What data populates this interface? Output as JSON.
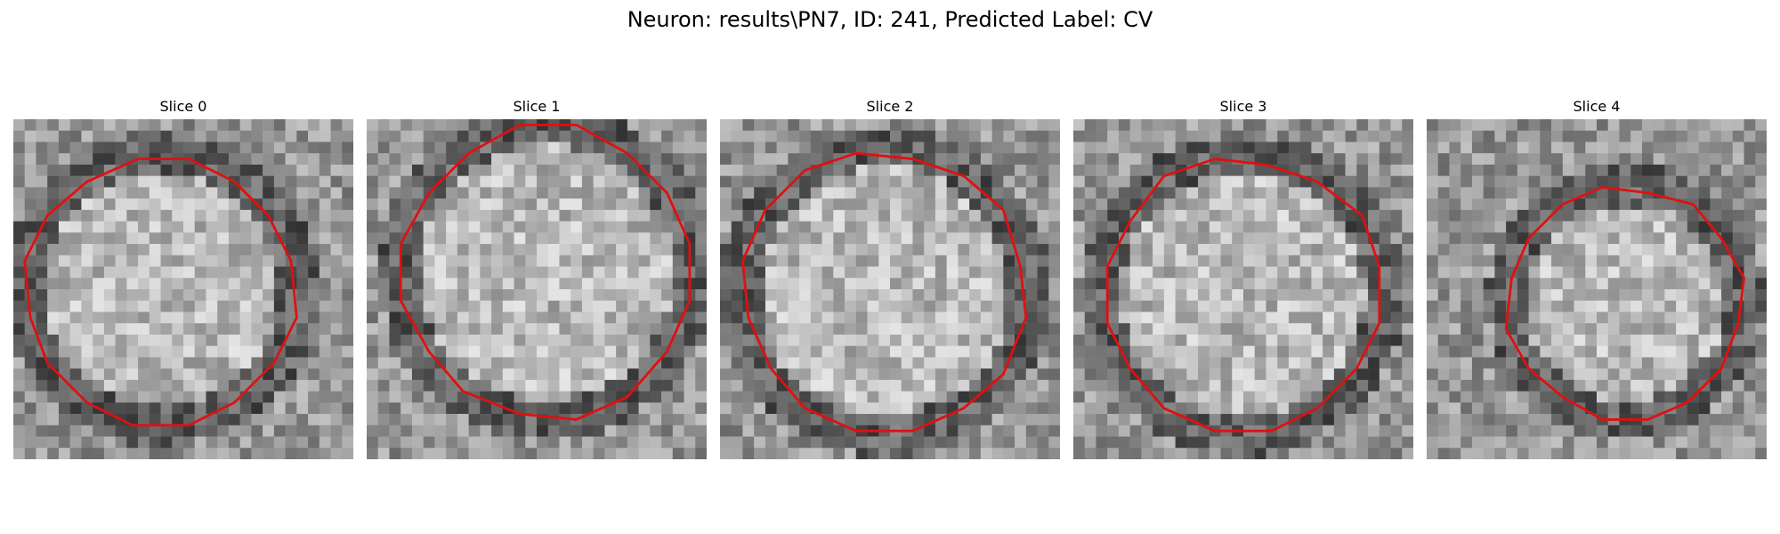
{
  "figure": {
    "title": "Neuron: results\\PN7, ID: 241, Predicted Label: CV"
  },
  "panels": [
    {
      "title": "Slice 0"
    },
    {
      "title": "Slice 1"
    },
    {
      "title": "Slice 2"
    },
    {
      "title": "Slice 3"
    },
    {
      "title": "Slice 4"
    }
  ],
  "colors": {
    "contour": "#e01010",
    "background": "#ffffff"
  }
}
